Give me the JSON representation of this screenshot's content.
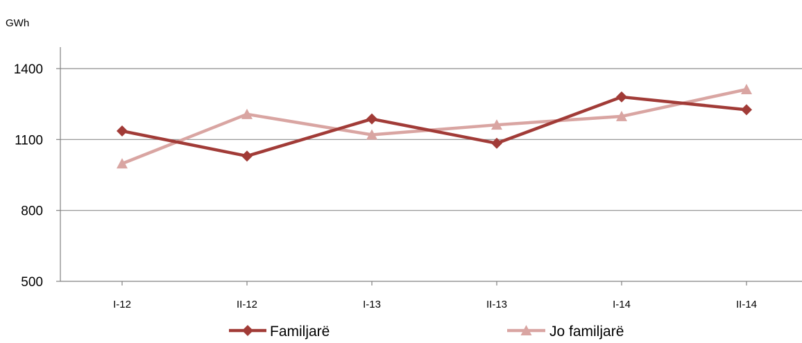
{
  "chart_data": {
    "type": "line",
    "title": "",
    "xlabel": "",
    "ylabel": "GWh",
    "ylim": [
      500,
      1400
    ],
    "yticks": [
      500,
      800,
      1100,
      1400
    ],
    "grid": true,
    "legend_position": "bottom",
    "categories": [
      "I-12",
      "II-12",
      "I-13",
      "II-13",
      "I-14",
      "II-14"
    ],
    "series": [
      {
        "name": "Familjarë",
        "values": [
          1136,
          1030,
          1187,
          1084,
          1280,
          1226
        ],
        "color": "#A13B37",
        "marker": "diamond"
      },
      {
        "name": "Jo familjarë",
        "values": [
          998,
          1207,
          1120,
          1162,
          1198,
          1312
        ],
        "color": "#D9A5A2",
        "marker": "triangle"
      }
    ]
  }
}
